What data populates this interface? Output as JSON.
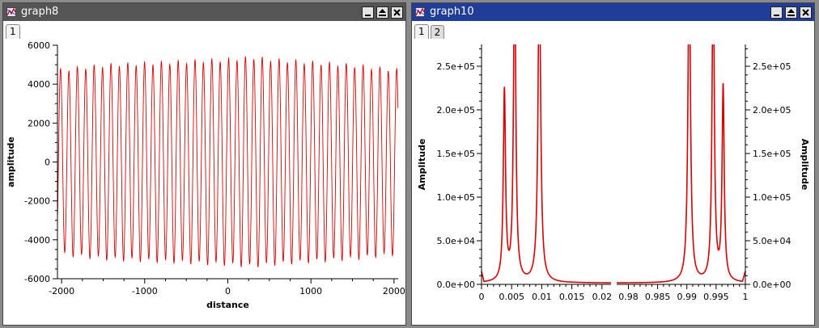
{
  "windows": {
    "graph8": {
      "title": "graph8",
      "title_bar_color": "#555555",
      "tabs": [
        "1"
      ],
      "active_tab": 0
    },
    "graph10": {
      "title": "graph10",
      "title_bar_color": "#1f3d99",
      "tabs": [
        "1",
        "2"
      ],
      "active_tab": 0
    }
  },
  "window_controls": [
    "minimize-icon",
    "maximize-icon",
    "close-icon"
  ],
  "chart_data": [
    {
      "type": "line",
      "xlabel": "distance",
      "ylabel": "amplitude",
      "xlim": [
        -2050,
        2050
      ],
      "ylim": [
        -6000,
        6000
      ],
      "x_ticks": [
        -2000,
        -1000,
        0,
        1000,
        2000
      ],
      "x_tick_labels": [
        "-2000",
        "-1000",
        "0",
        "1000",
        "2000"
      ],
      "y_ticks": [
        -6000,
        -4000,
        -2000,
        0,
        2000,
        4000,
        6000
      ],
      "y_tick_labels": [
        "-6000",
        "-4000",
        "-2000",
        "0",
        "2000",
        "4000",
        "6000"
      ],
      "line_color": "#dd0000",
      "series": [
        {
          "x_range": [
            -2048,
            2048
          ],
          "cycles": 40.5,
          "amplitude_envelope": [
            [
              -2048,
              4700
            ],
            [
              -1500,
              4950
            ],
            [
              -1000,
              5050
            ],
            [
              -500,
              5150
            ],
            [
              0,
              5250
            ],
            [
              300,
              5350
            ],
            [
              500,
              5250
            ],
            [
              1000,
              5100
            ],
            [
              1500,
              4950
            ],
            [
              2048,
              4700
            ]
          ]
        }
      ]
    },
    {
      "type": "line",
      "ylabel": "Amplitude",
      "ylabel_right": "Amplitude",
      "ylim": [
        0,
        275000
      ],
      "y_ticks": [
        0,
        50000,
        100000,
        150000,
        200000,
        250000
      ],
      "y_tick_labels": [
        "0.0e+00",
        "5.0e+04",
        "1.0e+05",
        "1.5e+05",
        "2.0e+05",
        "2.5e+05"
      ],
      "broken_x_axis": true,
      "line_color": "#dd0000",
      "segments": [
        {
          "xlim": [
            0,
            0.0215
          ],
          "x_ticks": [
            0,
            0.005,
            0.01,
            0.015,
            0.02
          ],
          "x_tick_labels": [
            "0",
            "0.005",
            "0.01",
            "0.015",
            "0.02"
          ],
          "peaks": [
            {
              "x": 0.0038,
              "height": 218000,
              "width": 0.00022
            },
            {
              "x": 0.0055,
              "height": 380000,
              "width": 0.00022
            },
            {
              "x": 0.0096,
              "height": 380000,
              "width": 0.00025
            }
          ]
        },
        {
          "xlim": [
            0.978,
            1.0
          ],
          "x_ticks": [
            0.98,
            0.985,
            0.99,
            0.995,
            1.0
          ],
          "x_tick_labels": [
            "0.98",
            "0.985",
            "0.99",
            "0.995",
            "1"
          ],
          "peaks": [
            {
              "x": 0.9904,
              "height": 380000,
              "width": 0.00025
            },
            {
              "x": 0.9945,
              "height": 380000,
              "width": 0.00022
            },
            {
              "x": 0.9962,
              "height": 222000,
              "width": 0.00022
            }
          ]
        }
      ]
    }
  ]
}
